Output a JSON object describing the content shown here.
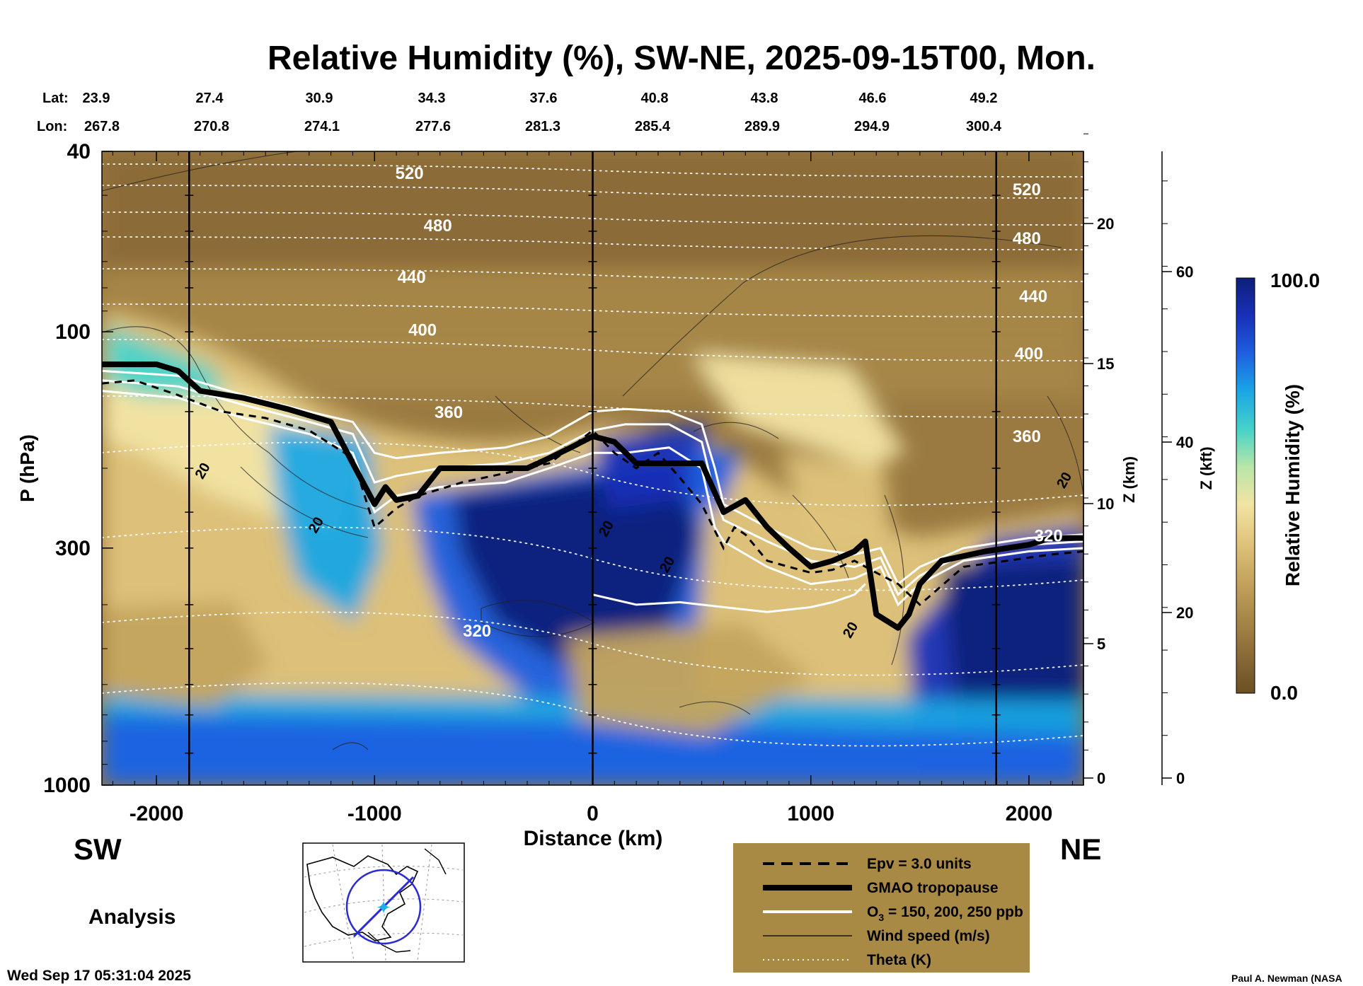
{
  "chart_data": {
    "type": "heatmap",
    "title": "Relative Humidity (%), SW-NE, 2025-09-15T00, Mon.",
    "lat_label": "Lat:",
    "lon_label": "Lon:",
    "lat_values": [
      "23.9",
      "27.4",
      "30.9",
      "34.3",
      "37.6",
      "40.8",
      "43.8",
      "46.6",
      "49.2"
    ],
    "lon_values": [
      "267.8",
      "270.8",
      "274.1",
      "277.6",
      "281.3",
      "285.4",
      "289.9",
      "294.9",
      "300.4"
    ],
    "xlabel": "Distance (km)",
    "xlim": [
      -2250,
      2250
    ],
    "x_ticks": [
      "-2000",
      "-1000",
      "0",
      "1000",
      "2000"
    ],
    "ylabel": "P (hPa)",
    "ylim": [
      1000,
      40
    ],
    "y_scale": "log",
    "y_ticks": [
      "40",
      "100",
      "300",
      "1000"
    ],
    "z_km_label": "Z (km)",
    "z_km_ticks": [
      "0",
      "5",
      "10",
      "15",
      "20"
    ],
    "z_kft_label": "Z (kft)",
    "z_kft_ticks": [
      "0",
      "20",
      "40",
      "60"
    ],
    "colorbar": {
      "label": "Relative Humidity (%)",
      "min_label": "0.0",
      "max_label": "100.0",
      "colors": [
        "#6b5024",
        "#8a6a36",
        "#a88848",
        "#c4a45e",
        "#e0c47c",
        "#f2e4a4",
        "#b8e6a8",
        "#46d2c8",
        "#1aa6e4",
        "#1f5fe0",
        "#1830b8",
        "#0e1f7a"
      ]
    },
    "side_left": "SW",
    "side_right": "NE",
    "analysis_label": "Analysis",
    "timestamp": "Wed Sep 17 05:31:04 2025",
    "credit": "Paul A. Newman (NASA",
    "section_lines_km": [
      -1850,
      0,
      1850
    ],
    "theta_labels": [
      {
        "text": "520",
        "x_km": -840,
        "p": 46
      },
      {
        "text": "480",
        "x_km": -710,
        "p": 60
      },
      {
        "text": "440",
        "x_km": -830,
        "p": 78
      },
      {
        "text": "400",
        "x_km": -780,
        "p": 102
      },
      {
        "text": "360",
        "x_km": -660,
        "p": 155
      },
      {
        "text": "320",
        "x_km": -530,
        "p": 470
      },
      {
        "text": "520",
        "x_km": 1990,
        "p": 50
      },
      {
        "text": "480",
        "x_km": 1990,
        "p": 64
      },
      {
        "text": "440",
        "x_km": 2020,
        "p": 86
      },
      {
        "text": "400",
        "x_km": 2000,
        "p": 115
      },
      {
        "text": "360",
        "x_km": 1990,
        "p": 175
      },
      {
        "text": "320",
        "x_km": 2090,
        "p": 290
      }
    ],
    "wind_labels": [
      {
        "text": "20",
        "x_km": -1770,
        "p": 205
      },
      {
        "text": "20",
        "x_km": -1250,
        "p": 270
      },
      {
        "text": "20",
        "x_km": 80,
        "p": 275
      },
      {
        "text": "20",
        "x_km": 360,
        "p": 330
      },
      {
        "text": "20",
        "x_km": 1200,
        "p": 460
      },
      {
        "text": "20",
        "x_km": 2180,
        "p": 215
      }
    ],
    "tropopause": {
      "x_km": [
        -2250,
        -2000,
        -1900,
        -1800,
        -1600,
        -1400,
        -1200,
        -1100,
        -1000,
        -950,
        -900,
        -800,
        -700,
        -500,
        -300,
        -200,
        -100,
        0,
        100,
        200,
        300,
        500,
        600,
        700,
        800,
        900,
        1000,
        1100,
        1200,
        1250,
        1300,
        1400,
        1450,
        1500,
        1600,
        1800,
        2000,
        2100,
        2250
      ],
      "p": [
        118,
        118,
        122,
        135,
        140,
        148,
        158,
        195,
        240,
        220,
        235,
        230,
        200,
        200,
        200,
        190,
        180,
        170,
        175,
        195,
        195,
        195,
        250,
        235,
        270,
        300,
        330,
        320,
        305,
        290,
        420,
        450,
        420,
        360,
        320,
        305,
        295,
        285,
        285
      ]
    },
    "epv_line": {
      "x_km": [
        -2250,
        -2100,
        -1900,
        -1700,
        -1500,
        -1300,
        -1100,
        -1000,
        -900,
        -800,
        -600,
        -400,
        -200,
        -100,
        0,
        100,
        200,
        300,
        400,
        500,
        600,
        650,
        700,
        800,
        900,
        1000,
        1100,
        1200,
        1300,
        1400,
        1500,
        1700,
        1900,
        2100,
        2250
      ],
      "p": [
        130,
        128,
        138,
        150,
        155,
        165,
        190,
        270,
        245,
        230,
        215,
        205,
        195,
        180,
        165,
        185,
        200,
        185,
        210,
        240,
        300,
        270,
        280,
        320,
        330,
        340,
        335,
        320,
        340,
        360,
        400,
        330,
        320,
        310,
        305
      ]
    },
    "o3_lines": [
      {
        "x_km": [
          -2250,
          -1900,
          -1600,
          -1300,
          -1100,
          -1000,
          -900,
          -700,
          -400,
          -200,
          0,
          150,
          350,
          500,
          560,
          600,
          800,
          1000,
          1200,
          1320,
          1400,
          1500,
          1700,
          2000,
          2250
        ],
        "p": [
          135,
          140,
          155,
          168,
          185,
          250,
          230,
          220,
          215,
          200,
          185,
          185,
          180,
          200,
          270,
          290,
          330,
          360,
          350,
          330,
          400,
          360,
          320,
          305,
          300
        ]
      },
      {
        "x_km": [
          -2250,
          -1900,
          -1600,
          -1300,
          -1100,
          -1000,
          -900,
          -700,
          -400,
          -200,
          0,
          150,
          350,
          500,
          560,
          600,
          800,
          1000,
          1200,
          1320,
          1400,
          1500,
          1700,
          2000,
          2250
        ],
        "p": [
          128,
          132,
          145,
          158,
          168,
          215,
          208,
          200,
          195,
          185,
          165,
          160,
          160,
          175,
          230,
          260,
          290,
          320,
          330,
          315,
          380,
          345,
          310,
          295,
          290
        ]
      },
      {
        "x_km": [
          -2250,
          -1900,
          -1600,
          -1300,
          -1100,
          -1000,
          -900,
          -700,
          -400,
          -200,
          0,
          150,
          350,
          500,
          560,
          600,
          800,
          1000,
          1200,
          1320,
          1400,
          1500,
          1700,
          2000,
          2250
        ],
        "p": [
          122,
          125,
          138,
          150,
          158,
          185,
          190,
          185,
          180,
          170,
          150,
          148,
          150,
          160,
          200,
          240,
          270,
          300,
          310,
          300,
          360,
          330,
          300,
          285,
          280
        ]
      },
      {
        "x_km": [
          0,
          200,
          400,
          600,
          800,
          1000,
          1100,
          1200,
          1250
        ],
        "p": [
          380,
          400,
          395,
          405,
          415,
          405,
          395,
          380,
          360
        ]
      }
    ],
    "legend": [
      {
        "style": "dashed",
        "label": "Epv = 3.0 units"
      },
      {
        "style": "thick",
        "label": "GMAO tropopause"
      },
      {
        "style": "white",
        "label": "O3 = 150, 200, 250 ppb"
      },
      {
        "style": "thin",
        "label": "Wind speed (m/s)"
      },
      {
        "style": "dotted",
        "label": "Theta (K)"
      }
    ],
    "legend_ozone_prefix": "O",
    "legend_ozone_sub": "3",
    "legend_ozone_suffix": " = 150, 200, 250 ppb"
  }
}
